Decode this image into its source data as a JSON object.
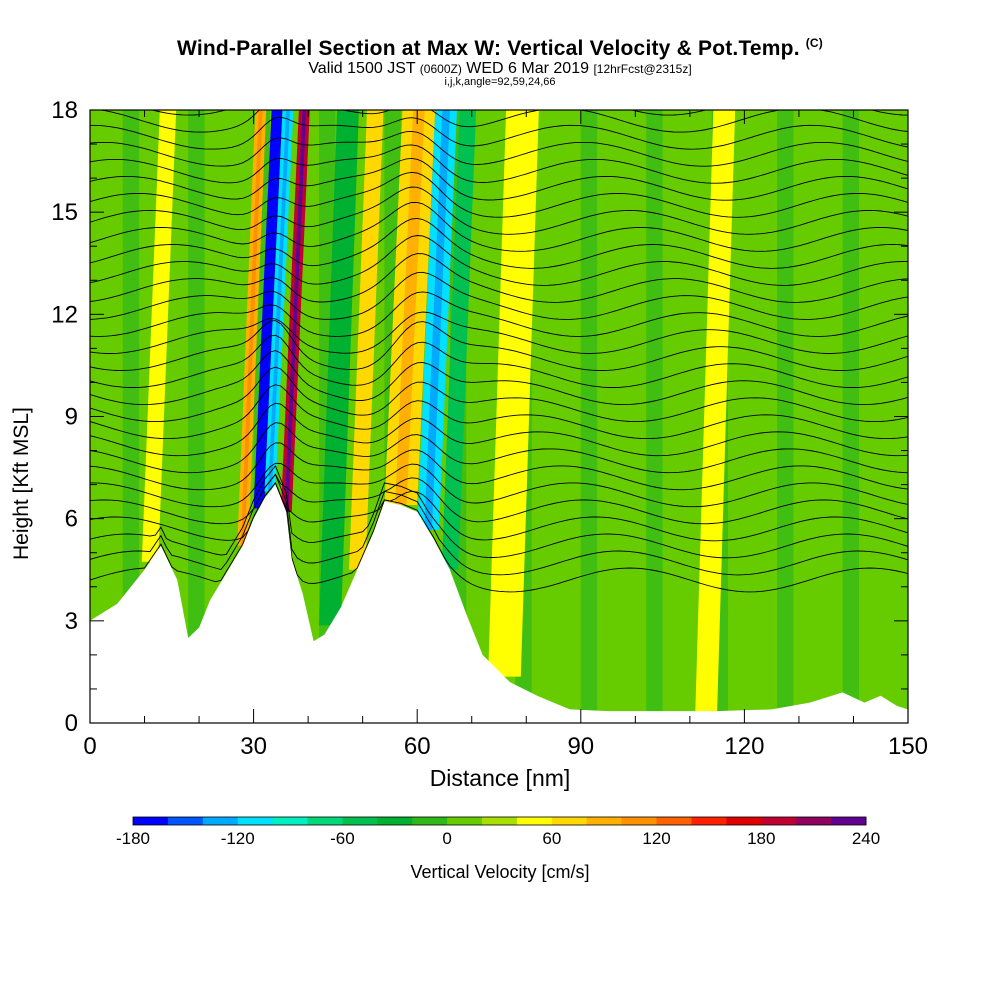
{
  "chart_data": {
    "type": "heatmap",
    "title": "Wind-Parallel Section at Max W: Vertical Velocity & Pot.Temp.",
    "copyright": "(C)",
    "subtitle_main": "Valid 1500 JST",
    "subtitle_utc": "(0600Z)",
    "subtitle_date": "WED 6 Mar 2019",
    "subtitle_fcst": "[12hrFcst@2315z]",
    "subtitle2": "i,j,k,angle=92,59,24,66",
    "xlabel": "Distance [nm]",
    "ylabel": "Height [Kft MSL]",
    "xlim": [
      0,
      150
    ],
    "ylim": [
      0,
      18
    ],
    "x_ticks": [
      "0",
      "30",
      "60",
      "90",
      "120",
      "150"
    ],
    "y_ticks": [
      "0",
      "3",
      "6",
      "9",
      "12",
      "15",
      "18"
    ],
    "colorbar": {
      "label": "Vertical Velocity [cm/s]",
      "range": [
        -180,
        240
      ],
      "tick_labels": [
        "-180",
        "-120",
        "-60",
        "0",
        "60",
        "120",
        "180",
        "240"
      ],
      "colors": [
        "#0000ff",
        "#0055ff",
        "#00aaff",
        "#00e0ff",
        "#00f0c0",
        "#00d87a",
        "#00c050",
        "#00b030",
        "#30b818",
        "#66cc00",
        "#aae000",
        "#ffff00",
        "#ffd800",
        "#ffb000",
        "#ff9000",
        "#ff6000",
        "#ff2000",
        "#e00000",
        "#c00030",
        "#900060",
        "#600090"
      ]
    },
    "terrain": [
      [
        0,
        3.0
      ],
      [
        5,
        3.5
      ],
      [
        10,
        4.5
      ],
      [
        13,
        5.2
      ],
      [
        16,
        4.2
      ],
      [
        18,
        2.5
      ],
      [
        20,
        2.8
      ],
      [
        22,
        3.6
      ],
      [
        25,
        4.4
      ],
      [
        28,
        5.2
      ],
      [
        30,
        6.0
      ],
      [
        32,
        6.6
      ],
      [
        34,
        7.0
      ],
      [
        36,
        6.2
      ],
      [
        37,
        4.8
      ],
      [
        39,
        3.8
      ],
      [
        41,
        2.4
      ],
      [
        43,
        2.6
      ],
      [
        46,
        3.4
      ],
      [
        49,
        4.5
      ],
      [
        52,
        5.6
      ],
      [
        54,
        6.5
      ],
      [
        57,
        6.4
      ],
      [
        60,
        6.2
      ],
      [
        63,
        5.4
      ],
      [
        66,
        4.5
      ],
      [
        69,
        3.2
      ],
      [
        72,
        2.0
      ],
      [
        77,
        1.2
      ],
      [
        82,
        0.8
      ],
      [
        85,
        0.6
      ],
      [
        88,
        0.4
      ],
      [
        95,
        0.35
      ],
      [
        115,
        0.35
      ],
      [
        125,
        0.4
      ],
      [
        132,
        0.6
      ],
      [
        138,
        0.9
      ],
      [
        142,
        0.6
      ],
      [
        145,
        0.8
      ],
      [
        148,
        0.5
      ],
      [
        150,
        0.4
      ]
    ],
    "updraft_bands": [
      {
        "x": 11,
        "width": 3,
        "w": 40
      },
      {
        "x": 28,
        "width": 2,
        "w": 80
      },
      {
        "x": 36,
        "width": 2,
        "w": 180
      },
      {
        "x": 49,
        "width": 3,
        "w": 60
      },
      {
        "x": 57,
        "width": 6,
        "w": 70
      },
      {
        "x": 76,
        "width": 6,
        "w": 55
      },
      {
        "x": 113,
        "width": 4,
        "w": 50
      }
    ],
    "downdraft_bands": [
      {
        "x": 31,
        "width": 2,
        "w": -170
      },
      {
        "x": 33,
        "width": 2,
        "w": -110
      },
      {
        "x": 44,
        "width": 4,
        "w": -40
      },
      {
        "x": 62,
        "width": 4,
        "w": -110
      },
      {
        "x": 66,
        "width": 3,
        "w": -60
      }
    ],
    "isentropes_count": 30
  }
}
